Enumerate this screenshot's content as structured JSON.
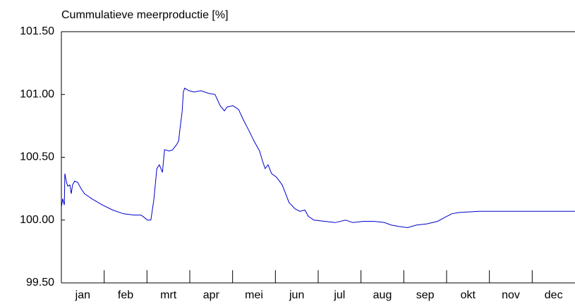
{
  "chart_data": {
    "type": "line",
    "title": "Cummulatieve meerproductie [%]",
    "categories": [
      "jan",
      "feb",
      "mrt",
      "apr",
      "mei",
      "jun",
      "jul",
      "aug",
      "sep",
      "okt",
      "nov",
      "dec"
    ],
    "xlim": [
      0,
      12
    ],
    "ylim": [
      99.5,
      101.5
    ],
    "yticks": [
      {
        "value": 99.5,
        "label": "99.50"
      },
      {
        "value": 100,
        "label": "100.00"
      },
      {
        "value": 100.5,
        "label": "100.50"
      },
      {
        "value": 101,
        "label": "101.00"
      },
      {
        "value": 101.5,
        "label": "101.50"
      }
    ],
    "series": [
      {
        "color": "#0000cc",
        "x": [
          0,
          0.03,
          0.07,
          0.08,
          0.12,
          0.15,
          0.2,
          0.23,
          0.26,
          0.31,
          0.38,
          0.46,
          0.54,
          0.71,
          0.96,
          1.2,
          1.45,
          1.7,
          1.86,
          1.94,
          2.01,
          2.09,
          2.16,
          2.23,
          2.29,
          2.36,
          2.41,
          2.52,
          2.6,
          2.69,
          2.74,
          2.77,
          2.82,
          2.85,
          2.88,
          2.98,
          3.1,
          3.26,
          3.43,
          3.59,
          3.71,
          3.81,
          3.87,
          4.01,
          4.14,
          4.25,
          4.37,
          4.5,
          4.63,
          4.7,
          4.76,
          4.83,
          4.91,
          5.03,
          5.16,
          5.24,
          5.32,
          5.46,
          5.57,
          5.69,
          5.77,
          5.9,
          6.15,
          6.4,
          6.64,
          6.81,
          7.05,
          7.3,
          7.55,
          7.71,
          7.88,
          8.09,
          8.29,
          8.54,
          8.79,
          8.95,
          9.12,
          9.28,
          9.77,
          12
        ],
        "values": [
          100.1,
          100.17,
          100.12,
          100.37,
          100.3,
          100.27,
          100.28,
          100.21,
          100.28,
          100.31,
          100.3,
          100.25,
          100.21,
          100.17,
          100.12,
          100.08,
          100.05,
          100.04,
          100.04,
          100.02,
          100.0,
          100.0,
          100.16,
          100.41,
          100.44,
          100.38,
          100.56,
          100.55,
          100.56,
          100.6,
          100.63,
          100.72,
          100.86,
          101.02,
          101.05,
          101.03,
          101.02,
          101.03,
          101.01,
          101.0,
          100.91,
          100.87,
          100.9,
          100.91,
          100.88,
          100.8,
          100.72,
          100.63,
          100.55,
          100.47,
          100.41,
          100.44,
          100.37,
          100.34,
          100.28,
          100.21,
          100.14,
          100.09,
          100.07,
          100.08,
          100.03,
          100.0,
          99.99,
          99.98,
          100.0,
          99.98,
          99.99,
          99.99,
          99.98,
          99.96,
          99.95,
          99.94,
          99.96,
          99.97,
          99.99,
          100.02,
          100.05,
          100.06,
          100.07,
          100.07
        ]
      }
    ]
  }
}
